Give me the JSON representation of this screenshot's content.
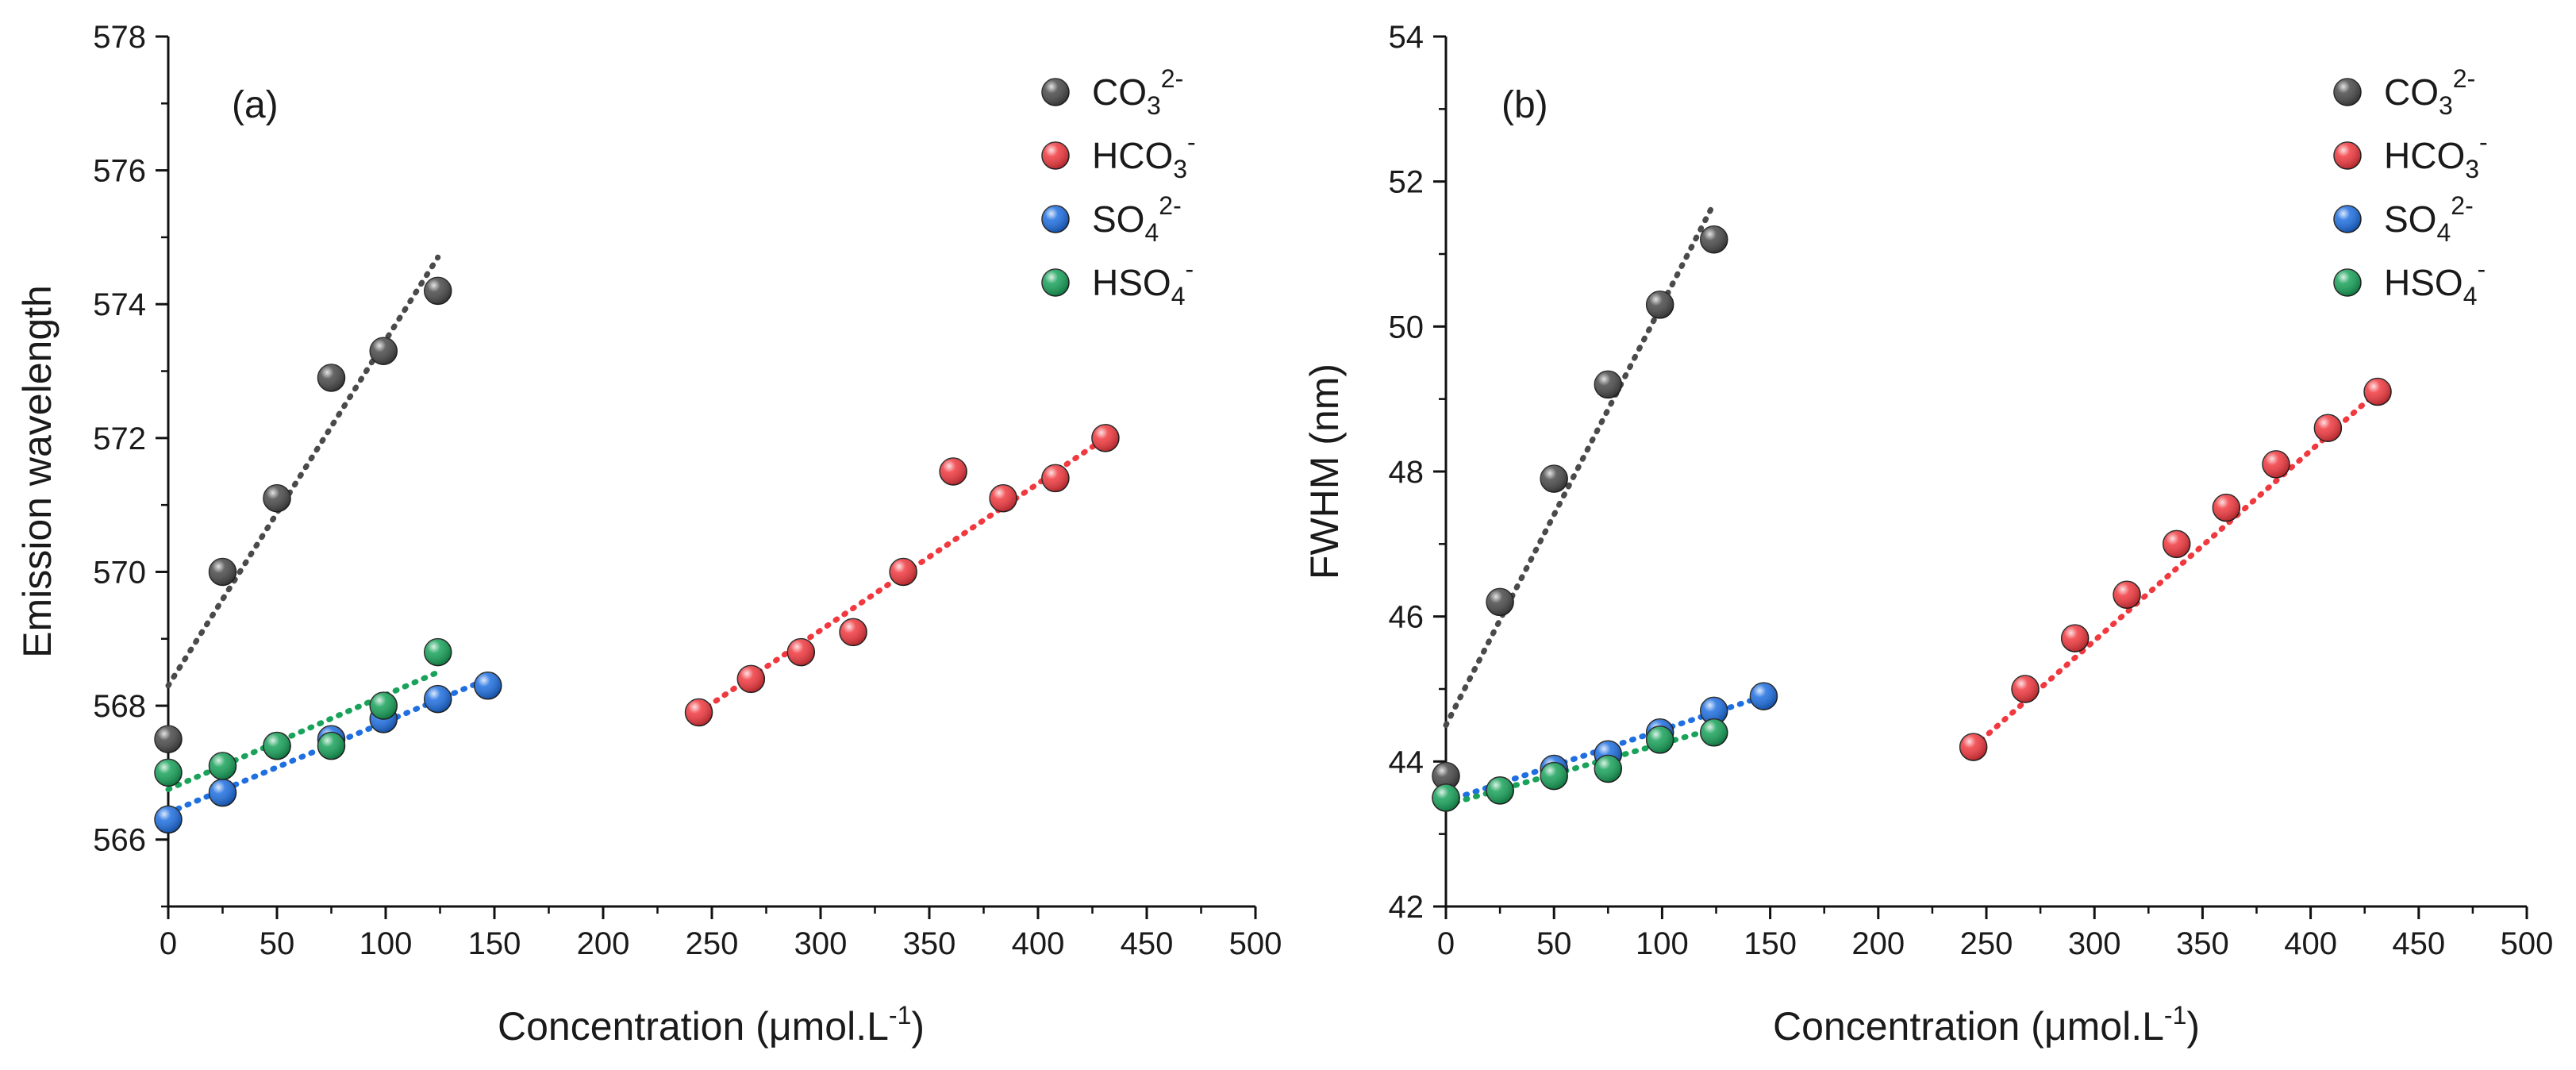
{
  "colors": {
    "carbonate": "#4a4a4a",
    "bicarbonate": "#f0393f",
    "sulfate": "#1f6fe0",
    "bisulfate": "#19a25a"
  },
  "legend": [
    {
      "key": "carbonate",
      "base": "CO",
      "sub": "3",
      "sup": "2-"
    },
    {
      "key": "bicarbonate",
      "base": "HCO",
      "sub": "3",
      "sup": "-"
    },
    {
      "key": "sulfate",
      "base": "SO",
      "sub": "4",
      "sup": "2-"
    },
    {
      "key": "bisulfate",
      "base": "HSO",
      "sub": "4",
      "sup": "-"
    }
  ],
  "chart_data": [
    {
      "type": "scatter",
      "panel": "(a)",
      "xlabel": "Concentration (μmol.L⁻¹)",
      "xlabel_base": "Concentration (μmol.L",
      "xlabel_sup": "-1",
      "xlabel_close": ")",
      "ylabel": "Emission wavelength",
      "xlim": [
        0,
        500
      ],
      "ylim": [
        565,
        578
      ],
      "xticks": [
        0,
        50,
        100,
        150,
        200,
        250,
        300,
        350,
        400,
        450,
        500
      ],
      "yticks": [
        566,
        568,
        570,
        572,
        574,
        576,
        578
      ],
      "series": [
        {
          "name": "CO₃²⁻",
          "key": "carbonate",
          "x": [
            0,
            25,
            50,
            75,
            99,
            124
          ],
          "y": [
            567.5,
            570.0,
            571.1,
            572.9,
            573.3,
            574.2
          ],
          "fit": [
            [
              0,
              568.3
            ],
            [
              124,
              574.7
            ]
          ]
        },
        {
          "name": "HCO₃⁻",
          "key": "bicarbonate",
          "x": [
            244,
            268,
            291,
            315,
            338,
            361,
            384,
            408,
            431
          ],
          "y": [
            567.9,
            568.4,
            568.8,
            569.1,
            570.0,
            571.5,
            571.1,
            571.4,
            572.0
          ],
          "fit": [
            [
              244,
              567.9
            ],
            [
              431,
              572.0
            ]
          ]
        },
        {
          "name": "SO₄²⁻",
          "key": "sulfate",
          "x": [
            0,
            25,
            50,
            75,
            99,
            124,
            147
          ],
          "y": [
            566.3,
            566.7,
            567.4,
            567.5,
            567.8,
            568.1,
            568.3
          ],
          "fit": [
            [
              0,
              566.4
            ],
            [
              147,
              568.4
            ]
          ]
        },
        {
          "name": "HSO₄⁻",
          "key": "bisulfate",
          "x": [
            0,
            25,
            50,
            75,
            99,
            124
          ],
          "y": [
            567.0,
            567.1,
            567.4,
            567.4,
            568.0,
            568.8
          ],
          "fit": [
            [
              0,
              566.75
            ],
            [
              124,
              568.5
            ]
          ]
        }
      ]
    },
    {
      "type": "scatter",
      "panel": "(b)",
      "xlabel": "Concentration (μmol.L⁻¹)",
      "xlabel_base": "Concentration (μmol.L",
      "xlabel_sup": "-1",
      "xlabel_close": ")",
      "ylabel": "FWHM (nm)",
      "xlim": [
        0,
        500
      ],
      "ylim": [
        42,
        54
      ],
      "xticks": [
        0,
        50,
        100,
        150,
        200,
        250,
        300,
        350,
        400,
        450,
        500
      ],
      "yticks": [
        42,
        44,
        46,
        48,
        50,
        52,
        54
      ],
      "series": [
        {
          "name": "CO₃²⁻",
          "key": "carbonate",
          "x": [
            0,
            25,
            50,
            75,
            99,
            124
          ],
          "y": [
            43.8,
            46.2,
            47.9,
            49.2,
            50.3,
            51.2
          ],
          "fit": [
            [
              0,
              44.5
            ],
            [
              124,
              51.7
            ]
          ]
        },
        {
          "name": "HCO₃⁻",
          "key": "bicarbonate",
          "x": [
            244,
            268,
            291,
            315,
            338,
            361,
            384,
            408,
            431
          ],
          "y": [
            44.2,
            45.0,
            45.7,
            46.3,
            47.0,
            47.5,
            48.1,
            48.6,
            49.1
          ],
          "fit": [
            [
              244,
              44.2
            ],
            [
              431,
              49.1
            ]
          ]
        },
        {
          "name": "SO₄²⁻",
          "key": "sulfate",
          "x": [
            0,
            25,
            50,
            75,
            99,
            124,
            147
          ],
          "y": [
            43.5,
            43.6,
            43.9,
            44.1,
            44.4,
            44.7,
            44.9
          ],
          "fit": [
            [
              0,
              43.45
            ],
            [
              147,
              44.9
            ]
          ]
        },
        {
          "name": "HSO₄⁻",
          "key": "bisulfate",
          "x": [
            0,
            25,
            50,
            75,
            99,
            124
          ],
          "y": [
            43.5,
            43.6,
            43.8,
            43.9,
            44.3,
            44.4
          ],
          "fit": [
            [
              0,
              43.4
            ],
            [
              124,
              44.45
            ]
          ]
        }
      ]
    }
  ]
}
